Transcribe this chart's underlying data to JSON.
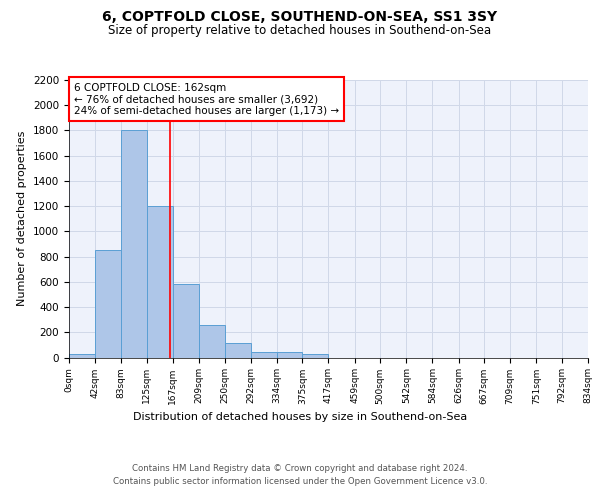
{
  "title1": "6, COPTFOLD CLOSE, SOUTHEND-ON-SEA, SS1 3SY",
  "title2": "Size of property relative to detached houses in Southend-on-Sea",
  "xlabel": "Distribution of detached houses by size in Southend-on-Sea",
  "ylabel": "Number of detached properties",
  "bar_edges": [
    0,
    42,
    83,
    125,
    167,
    209,
    250,
    292,
    334,
    375,
    417,
    459,
    500,
    542,
    584,
    626,
    667,
    709,
    751,
    792,
    834
  ],
  "bar_heights": [
    25,
    850,
    1800,
    1200,
    580,
    255,
    115,
    40,
    40,
    25,
    0,
    0,
    0,
    0,
    0,
    0,
    0,
    0,
    0,
    0
  ],
  "bar_color": "#aec6e8",
  "bar_edge_color": "#5a9fd4",
  "grid_color": "#d0d8e8",
  "background_color": "#eef2fb",
  "annotation_text": "6 COPTFOLD CLOSE: 162sqm\n← 76% of detached houses are smaller (3,692)\n24% of semi-detached houses are larger (1,173) →",
  "red_line_x": 162,
  "ylim": [
    0,
    2200
  ],
  "yticks": [
    0,
    200,
    400,
    600,
    800,
    1000,
    1200,
    1400,
    1600,
    1800,
    2000,
    2200
  ],
  "tick_labels": [
    "0sqm",
    "42sqm",
    "83sqm",
    "125sqm",
    "167sqm",
    "209sqm",
    "250sqm",
    "292sqm",
    "334sqm",
    "375sqm",
    "417sqm",
    "459sqm",
    "500sqm",
    "542sqm",
    "584sqm",
    "626sqm",
    "667sqm",
    "709sqm",
    "751sqm",
    "792sqm",
    "834sqm"
  ],
  "footer_line1": "Contains HM Land Registry data © Crown copyright and database right 2024.",
  "footer_line2": "Contains public sector information licensed under the Open Government Licence v3.0."
}
